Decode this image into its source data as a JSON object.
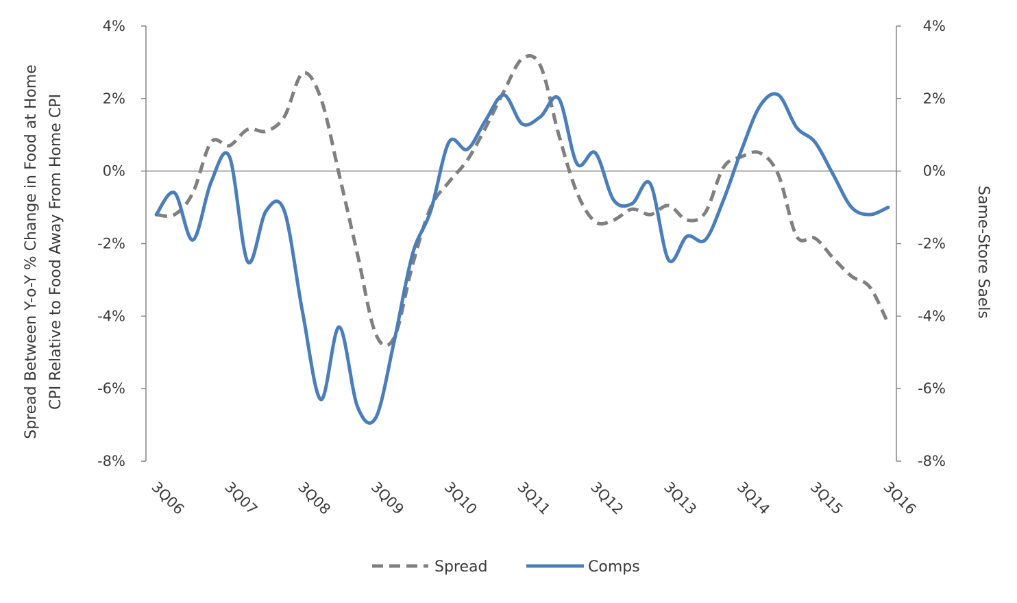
{
  "colors": {
    "spread": "#7f7f7f",
    "comps": "#4a7ebb",
    "axis": "#868686",
    "text": "#3a3a3a"
  },
  "chart_data": {
    "type": "line",
    "x_ticks": [
      "3Q06",
      "3Q07",
      "3Q08",
      "3Q09",
      "3Q10",
      "3Q11",
      "3Q12",
      "3Q13",
      "3Q14",
      "3Q15",
      "3Q16"
    ],
    "y_ticks_left": [
      "4%",
      "2%",
      "0%",
      "-2%",
      "-4%",
      "-6%",
      "-8%"
    ],
    "y_ticks_right": [
      "4%",
      "2%",
      "0%",
      "-2%",
      "-4%",
      "-6%",
      "-8%"
    ],
    "ylim_left": [
      -8,
      4
    ],
    "ylim_right": [
      -8,
      4
    ],
    "ylabel_left_lines": [
      "Spread Between Y-o-Y % Change in Food at Home",
      "CPI Relative to Food Away From Home CPI"
    ],
    "ylabel_right": "Same-Store Saels",
    "x_unit": "quarters (3Q06 = 0)",
    "xlim": [
      0,
      40
    ],
    "legend": [
      "Spread",
      "Comps"
    ],
    "legend_position": "bottom-center",
    "series": [
      {
        "name": "Spread",
        "axis": "left",
        "style": "dashed",
        "x": [
          0,
          1,
          2,
          3,
          4,
          5,
          6,
          7,
          8,
          9,
          10,
          11,
          12,
          13,
          14,
          15,
          16,
          17,
          18,
          19,
          20,
          21,
          22,
          23,
          24,
          25,
          26,
          27,
          28,
          29,
          30,
          31,
          32,
          33,
          34,
          35,
          36,
          37,
          38,
          39,
          40
        ],
        "values": [
          -1.2,
          -1.2,
          -0.6,
          0.8,
          0.7,
          1.15,
          1.1,
          1.5,
          2.7,
          2.0,
          -0.1,
          -2.3,
          -4.5,
          -4.6,
          -2.6,
          -1.0,
          -0.3,
          0.3,
          1.2,
          2.2,
          3.1,
          2.9,
          1.0,
          -0.6,
          -1.4,
          -1.35,
          -1.05,
          -1.2,
          -0.95,
          -1.35,
          -1.15,
          0.1,
          0.4,
          0.5,
          -0.1,
          -1.8,
          -1.85,
          -2.4,
          -2.9,
          -3.2,
          -4.2
        ]
      },
      {
        "name": "Comps",
        "axis": "right",
        "style": "solid",
        "x": [
          0,
          1,
          2,
          3,
          4,
          5,
          6,
          7,
          8,
          9,
          10,
          11,
          12,
          13,
          14,
          15,
          16,
          17,
          18,
          19,
          20,
          21,
          22,
          23,
          24,
          25,
          26,
          27,
          28,
          29,
          30,
          31,
          32,
          33,
          34,
          35,
          36,
          37,
          38,
          39,
          40
        ],
        "values": [
          -1.2,
          -0.6,
          -1.9,
          -0.3,
          0.4,
          -2.5,
          -1.1,
          -1.1,
          -3.9,
          -6.3,
          -4.3,
          -6.5,
          -6.8,
          -4.7,
          -2.3,
          -1.1,
          0.8,
          0.6,
          1.4,
          2.1,
          1.3,
          1.5,
          2.0,
          0.2,
          0.5,
          -0.8,
          -0.9,
          -0.35,
          -2.45,
          -1.8,
          -1.9,
          -0.8,
          0.6,
          1.8,
          2.1,
          1.2,
          0.8,
          -0.1,
          -1.0,
          -1.2,
          -1.0
        ]
      }
    ],
    "grid": false
  }
}
